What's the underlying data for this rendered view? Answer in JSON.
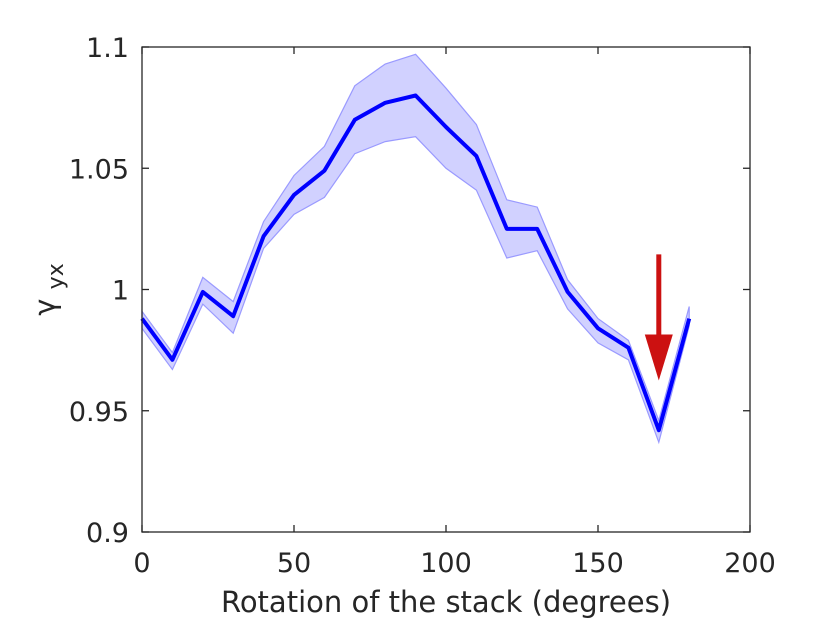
{
  "chart_data": {
    "type": "line",
    "title": "",
    "xlabel": "Rotation of the stack (degrees)",
    "ylabel_symbol": "γ",
    "ylabel_subscript": "yx",
    "xlim": [
      0,
      200
    ],
    "ylim": [
      0.9,
      1.1
    ],
    "xticks": [
      0,
      50,
      100,
      150,
      200
    ],
    "xtick_labels": [
      "0",
      "50",
      "100",
      "150",
      "200"
    ],
    "yticks": [
      0.9,
      0.95,
      1.0,
      1.05,
      1.1
    ],
    "ytick_labels": [
      "0.9",
      "0.95",
      "1",
      "1.05",
      "1.1"
    ],
    "grid": false,
    "series": [
      {
        "color": "#0000ff",
        "band_color": "#ccccff",
        "x": [
          0,
          10,
          20,
          30,
          40,
          50,
          60,
          70,
          80,
          90,
          100,
          110,
          120,
          130,
          140,
          150,
          160,
          170,
          180
        ],
        "values": [
          0.988,
          0.971,
          0.999,
          0.989,
          1.022,
          1.039,
          1.049,
          1.07,
          1.077,
          1.08,
          1.067,
          1.055,
          1.025,
          1.025,
          0.999,
          0.984,
          0.976,
          0.942,
          0.988
        ],
        "upper": [
          0.991,
          0.974,
          1.005,
          0.995,
          1.028,
          1.047,
          1.059,
          1.084,
          1.093,
          1.097,
          1.083,
          1.068,
          1.037,
          1.034,
          1.004,
          0.988,
          0.979,
          0.946,
          0.993
        ],
        "lower": [
          0.984,
          0.967,
          0.994,
          0.982,
          1.017,
          1.031,
          1.038,
          1.056,
          1.061,
          1.063,
          1.05,
          1.041,
          1.013,
          1.016,
          0.992,
          0.978,
          0.971,
          0.937,
          0.985
        ]
      }
    ],
    "annotations": [
      {
        "kind": "arrow",
        "color": "#cc1111",
        "x": 170,
        "y_start": 1.0145,
        "y_end": 0.9625
      }
    ]
  }
}
